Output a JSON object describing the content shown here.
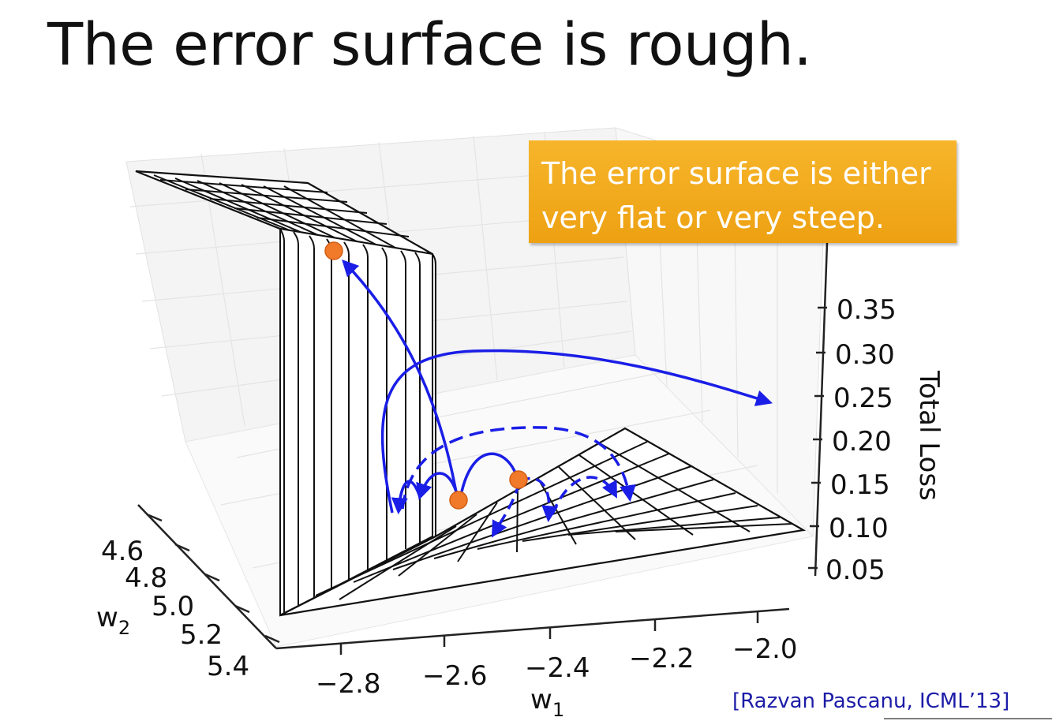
{
  "slide": {
    "title": "The error surface is rough.",
    "callout_line1": "The error surface is either",
    "callout_line2": "very flat or very steep.",
    "citation": "[Razvan Pascanu, ICML’13]"
  },
  "chart_data": {
    "type": "surface",
    "z_axis": {
      "label": "Total Loss",
      "ticks": [
        "0.35",
        "0.30",
        "0.25",
        "0.20",
        "0.15",
        "0.10",
        "0.05"
      ]
    },
    "x_axis": {
      "label": "w",
      "subscript": "1",
      "ticks": [
        "−2.8",
        "−2.6",
        "−2.4",
        "−2.2",
        "−2.0"
      ]
    },
    "y_axis": {
      "label": "w",
      "subscript": "2",
      "ticks": [
        "4.6",
        "4.8",
        "5.0",
        "5.2",
        "5.4"
      ]
    },
    "colors": {
      "surface": "#111111",
      "arrows": "#1a1ee6",
      "points": "#f07a2a",
      "callout": "#f2a81d"
    }
  }
}
